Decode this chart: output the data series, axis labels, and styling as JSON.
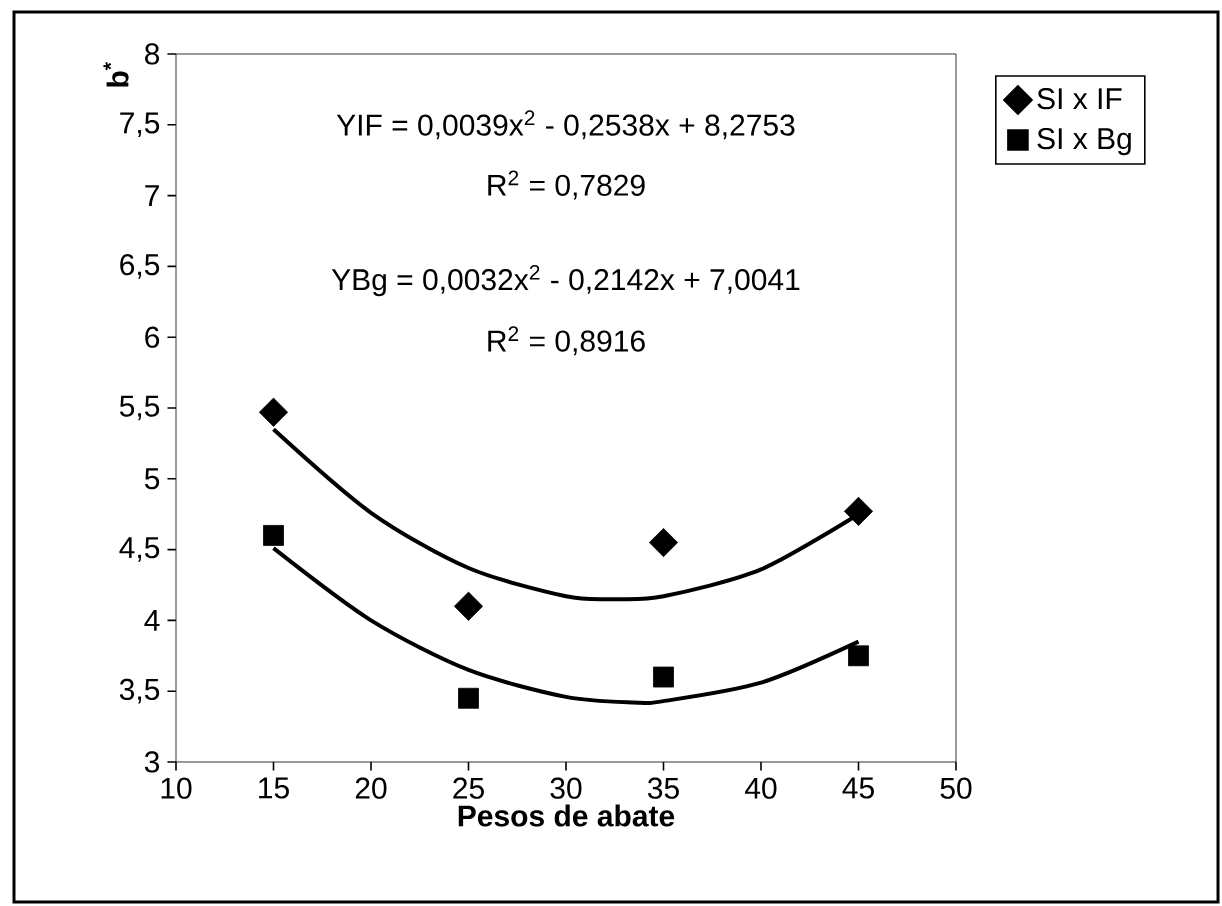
{
  "chart_data": {
    "type": "scatter",
    "xlabel": "Pesos de abate",
    "ylabel": "b$^{*}$",
    "xlim": [
      10,
      50
    ],
    "xticks": [
      10,
      15,
      20,
      25,
      30,
      35,
      40,
      45,
      50
    ],
    "ylim": [
      3,
      8
    ],
    "yticks": [
      3,
      {
        "value": 3.5,
        "label": "3,5"
      },
      4,
      {
        "value": 4.5,
        "label": "4,5"
      },
      5,
      {
        "value": 5.5,
        "label": "5,5"
      },
      6,
      {
        "value": 6.5,
        "label": "6,5"
      },
      7,
      {
        "value": 7.5,
        "label": "7,5"
      },
      8
    ],
    "x": [
      15,
      25,
      35,
      45
    ],
    "series": [
      {
        "type": "line",
        "color": "#000000",
        "x": [
          15,
          20,
          25,
          30,
          32.5,
          35,
          40,
          45
        ],
        "values": [
          5.35,
          4.76,
          4.37,
          4.17,
          4.15,
          4.17,
          4.36,
          4.75
        ]
      },
      {
        "type": "line",
        "color": "#000000",
        "x": [
          15,
          20,
          25,
          30,
          33.5,
          35,
          40,
          45
        ],
        "values": [
          4.51,
          4.0,
          3.65,
          3.46,
          3.42,
          3.43,
          3.56,
          3.85
        ]
      },
      {
        "name": "SI x IF",
        "color": "#000000",
        "marker": "diamond",
        "values": [
          5.47,
          4.1,
          4.55,
          4.77
        ]
      },
      {
        "name": "SI x Bg",
        "color": "#000000",
        "marker": "square",
        "values": [
          4.6,
          3.45,
          3.6,
          3.75
        ]
      }
    ],
    "annotations": [
      "YIF = 0,0039x$^{2}$ - 0,2538x + 8,2753",
      "R$^{2}$ = 0,7829",
      "YBg = 0,0032x$^{2}$ - 0,2142x + 7,0041",
      "R$^{2}$ = 0,8916"
    ],
    "legend": "top right",
    "grid": false
  }
}
